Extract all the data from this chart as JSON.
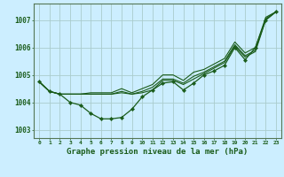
{
  "title": "Graphe pression niveau de la mer (hPa)",
  "bg_color": "#cceeff",
  "grid_color": "#aacccc",
  "line_color": "#1a5c1a",
  "xlim": [
    -0.5,
    23.5
  ],
  "ylim": [
    1002.7,
    1007.6
  ],
  "yticks": [
    1003,
    1004,
    1005,
    1006,
    1007
  ],
  "xticks": [
    0,
    1,
    2,
    3,
    4,
    5,
    6,
    7,
    8,
    9,
    10,
    11,
    12,
    13,
    14,
    15,
    16,
    17,
    18,
    19,
    20,
    21,
    22,
    23
  ],
  "s_low": [
    1004.75,
    1004.4,
    1004.3,
    1004.0,
    1003.9,
    1003.6,
    1003.4,
    1003.4,
    1003.45,
    1003.75,
    1004.2,
    1004.45,
    1004.7,
    1004.75,
    1004.45,
    1004.7,
    1005.0,
    1005.15,
    1005.35,
    1006.0,
    1005.55,
    1006.0,
    1007.0,
    1007.3
  ],
  "s_mid1": [
    1004.75,
    1004.4,
    1004.3,
    1004.3,
    1004.3,
    1004.3,
    1004.3,
    1004.3,
    1004.35,
    1004.3,
    1004.35,
    1004.45,
    1004.8,
    1004.8,
    1004.65,
    1004.85,
    1005.05,
    1005.25,
    1005.45,
    1006.05,
    1005.65,
    1005.85,
    1007.0,
    1007.3
  ],
  "s_mid2": [
    1004.75,
    1004.4,
    1004.3,
    1004.3,
    1004.3,
    1004.3,
    1004.3,
    1004.3,
    1004.4,
    1004.3,
    1004.4,
    1004.55,
    1004.85,
    1004.85,
    1004.7,
    1004.95,
    1005.1,
    1005.3,
    1005.5,
    1006.1,
    1005.7,
    1005.9,
    1007.05,
    1007.3
  ],
  "s_high": [
    1004.75,
    1004.4,
    1004.3,
    1004.3,
    1004.3,
    1004.35,
    1004.35,
    1004.35,
    1004.5,
    1004.35,
    1004.5,
    1004.65,
    1005.0,
    1005.0,
    1004.8,
    1005.1,
    1005.2,
    1005.4,
    1005.6,
    1006.2,
    1005.8,
    1006.0,
    1007.1,
    1007.3
  ]
}
